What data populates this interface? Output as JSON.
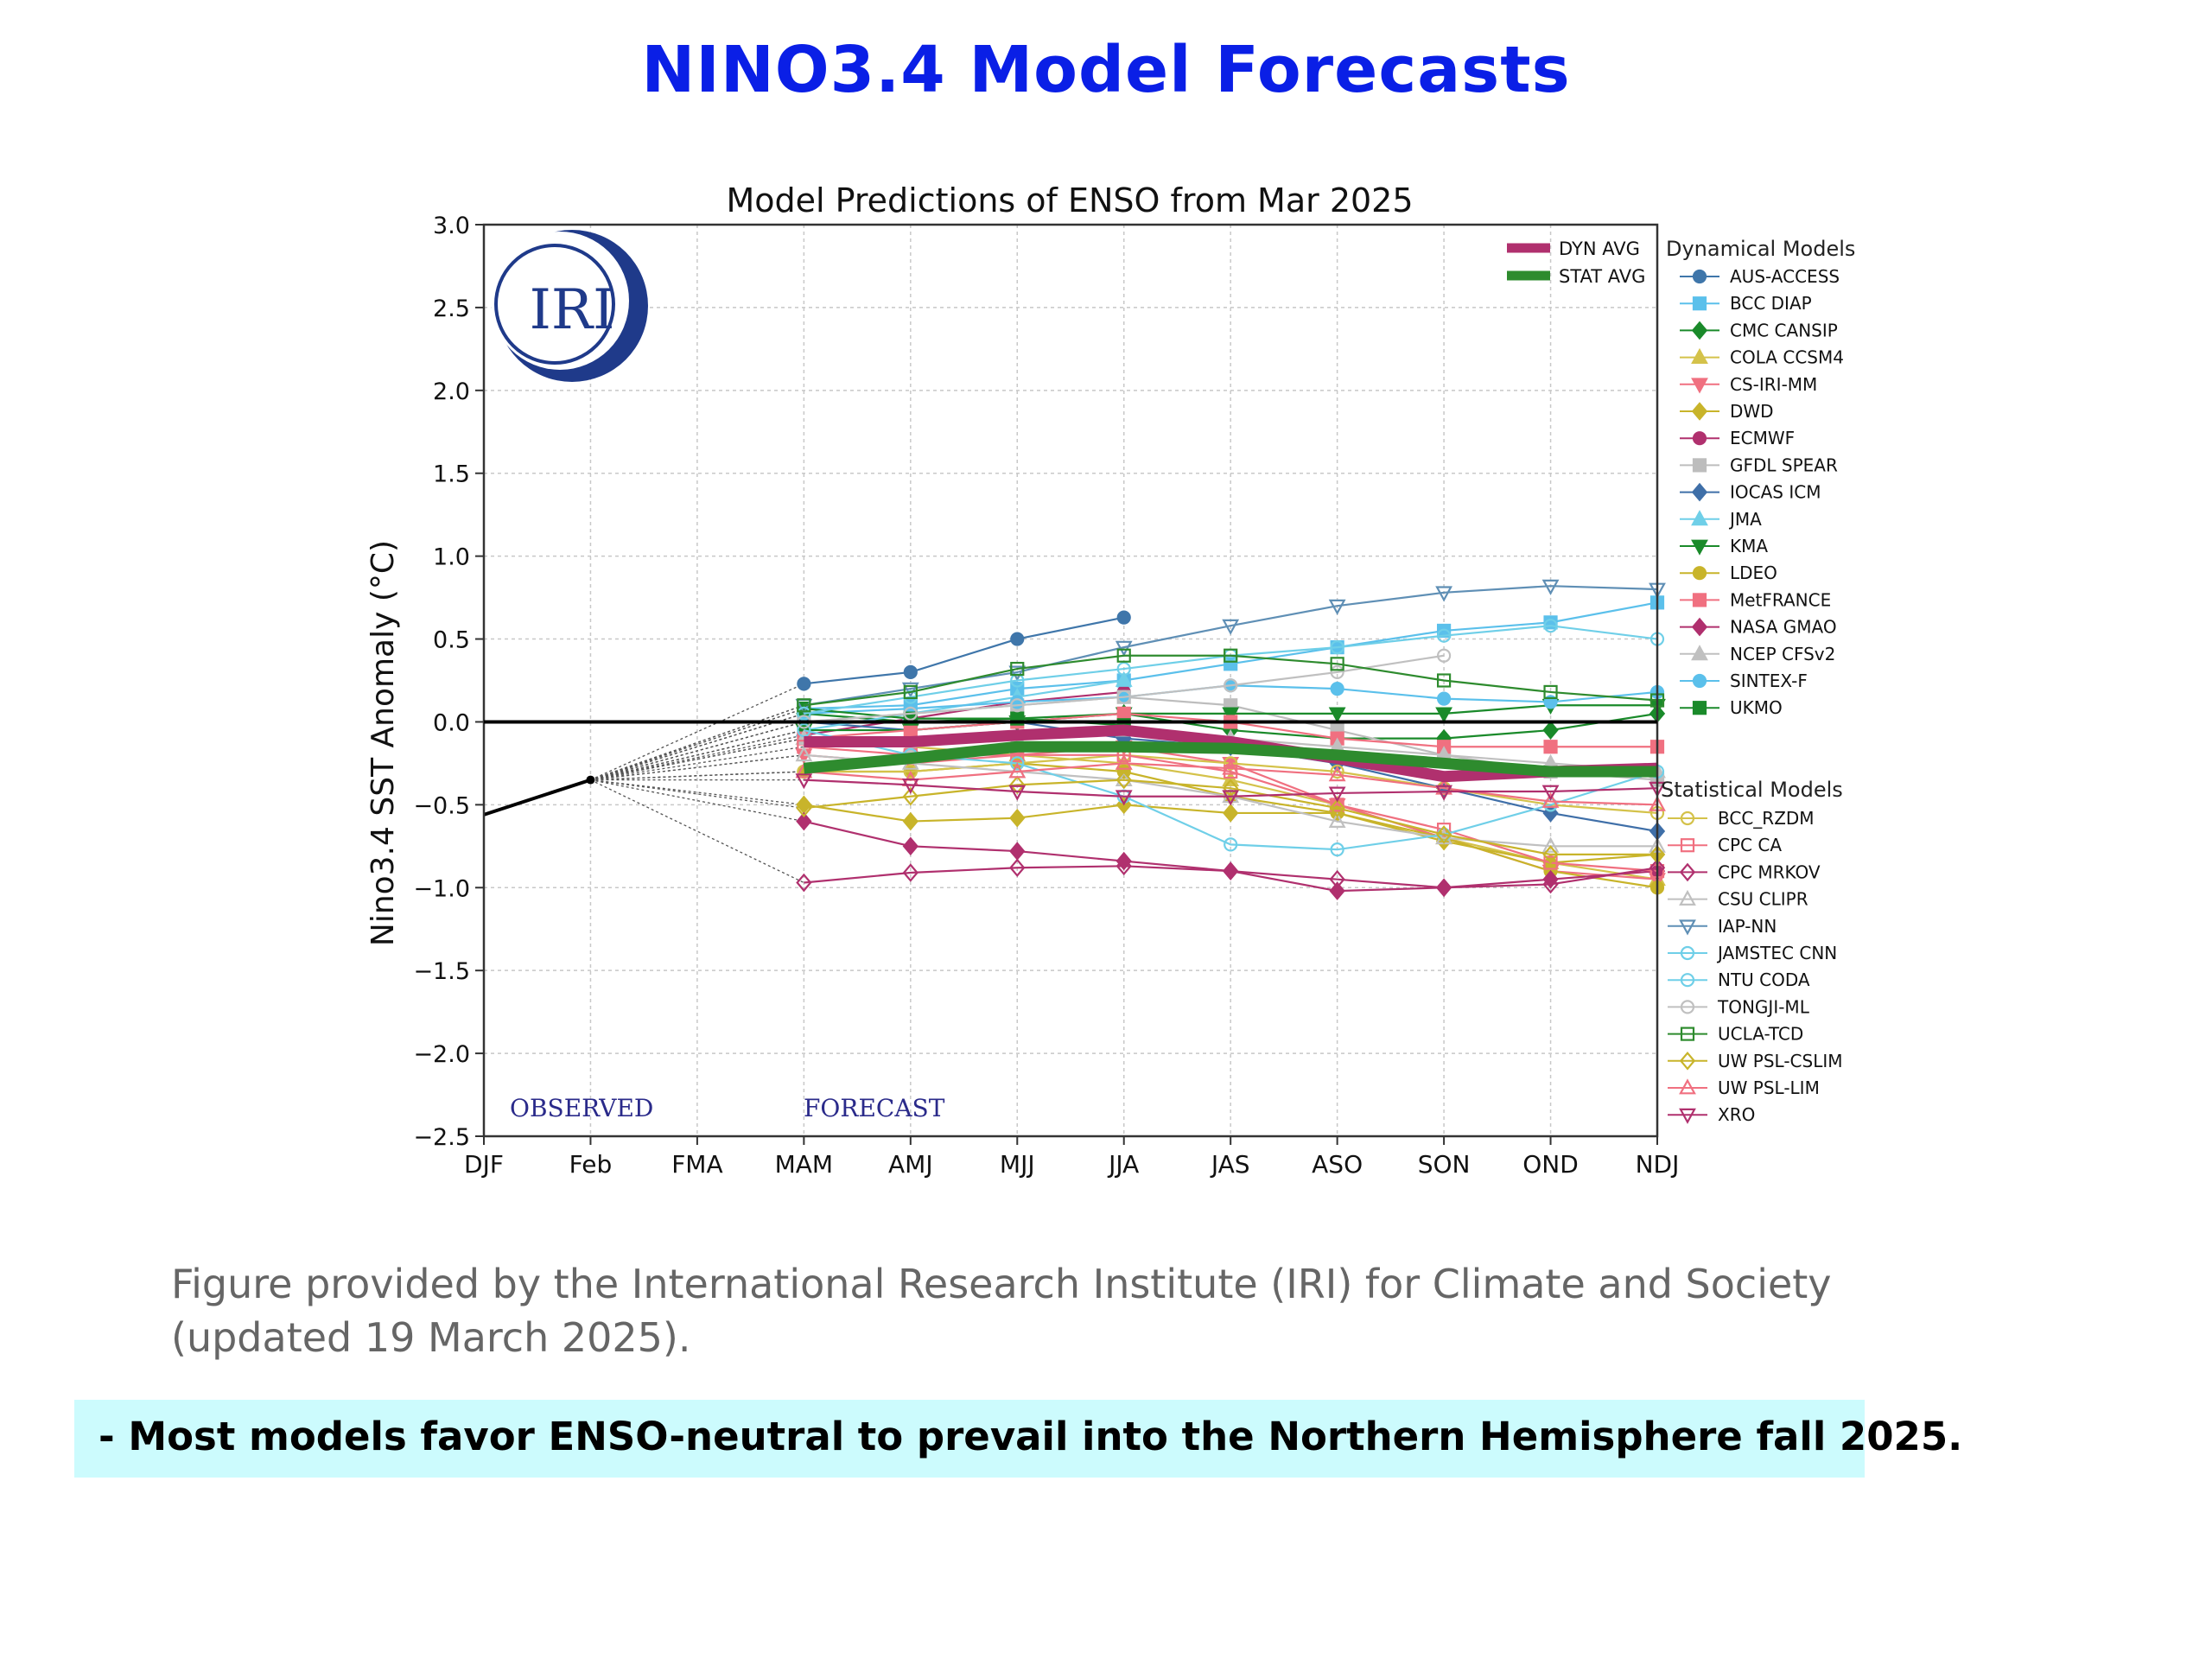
{
  "page": {
    "title": "NINO3.4 Model Forecasts",
    "caption": "Figure provided by the International Research Institute (IRI) for Climate and Society (updated 19 March 2025).",
    "callout": "-  Most models favor ENSO-neutral to prevail into the Northern Hemisphere fall 2025."
  },
  "chart_data": {
    "type": "line",
    "title": "Model Predictions of ENSO from Mar 2025",
    "ylabel": "Nino3.4 SST Anomaly (°C)",
    "xlabel": "",
    "categories": [
      "DJF",
      "Feb",
      "FMA",
      "MAM",
      "AMJ",
      "MJJ",
      "JJA",
      "JAS",
      "ASO",
      "SON",
      "OND",
      "NDJ"
    ],
    "ylim": [
      -2.5,
      3.0
    ],
    "yticks": [
      -2.5,
      -2.0,
      -1.5,
      -1.0,
      -0.5,
      0.0,
      0.5,
      1.0,
      1.5,
      2.0,
      2.5,
      3.0
    ],
    "ytick_labels": [
      "−2.5",
      "−2.0",
      "−1.5",
      "−1.0",
      "−0.5",
      "0.0",
      "0.5",
      "1.0",
      "1.5",
      "2.0",
      "2.5",
      "3.0"
    ],
    "grid": true,
    "zero_line": true,
    "logo_text": "IRI",
    "observed_label": "OBSERVED",
    "forecast_label": "FORECAST",
    "observed": {
      "x": [
        "DJF",
        "Feb"
      ],
      "values": [
        -0.56,
        -0.35
      ]
    },
    "averages": [
      {
        "name": "DYN AVG",
        "color": "#b0306e",
        "values": [
          -0.12,
          -0.12,
          -0.08,
          -0.05,
          -0.12,
          -0.22,
          -0.33,
          -0.3,
          -0.28
        ]
      },
      {
        "name": "STAT AVG",
        "color": "#2e8b2e",
        "values": [
          -0.28,
          -0.22,
          -0.15,
          -0.15,
          -0.16,
          -0.2,
          -0.25,
          -0.3,
          -0.3
        ]
      }
    ],
    "dynamical_title": "Dynamical Models",
    "dynamical_models": [
      {
        "name": "AUS-ACCESS",
        "color": "#3f76aa",
        "marker": "circle",
        "filled": true,
        "values": [
          0.23,
          0.3,
          0.5,
          0.63
        ]
      },
      {
        "name": "BCC DIAP",
        "color": "#5bc0eb",
        "marker": "square",
        "filled": true,
        "values": [
          0.08,
          0.1,
          0.2,
          0.25,
          0.35,
          0.45,
          0.55,
          0.6,
          0.72
        ]
      },
      {
        "name": "CMC CANSIP",
        "color": "#1a8a2a",
        "marker": "diamond",
        "filled": true,
        "values": [
          0.05,
          0.0,
          0.02,
          0.05,
          -0.05,
          -0.1,
          -0.1,
          -0.05,
          0.05
        ]
      },
      {
        "name": "COLA CCSM4",
        "color": "#d4c24a",
        "marker": "triangle",
        "filled": true,
        "values": [
          -0.1,
          -0.15,
          -0.2,
          -0.25,
          -0.35,
          -0.5,
          -0.7,
          -0.85,
          -0.95
        ]
      },
      {
        "name": "CS-IRI-MM",
        "color": "#f07080",
        "marker": "triangle-down",
        "filled": true,
        "values": [
          -0.2,
          -0.25,
          -0.2,
          -0.15,
          -0.25,
          -0.5,
          -0.7,
          -0.9,
          -0.95
        ]
      },
      {
        "name": "DWD",
        "color": "#c8b42a",
        "marker": "diamond",
        "filled": true,
        "values": [
          -0.5,
          -0.6,
          -0.58,
          -0.5,
          -0.55,
          -0.55,
          -0.72,
          -0.85,
          -0.8
        ]
      },
      {
        "name": "ECMWF",
        "color": "#b0306e",
        "marker": "circle",
        "filled": true,
        "values": [
          -0.08,
          0.02,
          0.12,
          0.18
        ]
      },
      {
        "name": "GFDL SPEAR",
        "color": "#bdbdbd",
        "marker": "square",
        "filled": true,
        "values": [
          0.0,
          0.05,
          0.1,
          0.15,
          0.1,
          -0.05,
          -0.2,
          -0.3,
          -0.35
        ]
      },
      {
        "name": "IOCAS ICM",
        "color": "#3f6fa8",
        "marker": "diamond",
        "filled": true,
        "values": [
          0.0,
          -0.05,
          0.0,
          -0.1,
          -0.15,
          -0.25,
          -0.4,
          -0.55,
          -0.66
        ]
      },
      {
        "name": "JMA",
        "color": "#6fcfe8",
        "marker": "triangle",
        "filled": true,
        "values": [
          -0.05,
          0.05,
          0.15,
          0.25
        ]
      },
      {
        "name": "KMA",
        "color": "#1a8a2a",
        "marker": "triangle-down",
        "filled": true,
        "values": [
          -0.05,
          -0.05,
          0.0,
          0.05,
          0.05,
          0.05,
          0.05,
          0.1,
          0.1
        ]
      },
      {
        "name": "LDEO",
        "color": "#c8b42a",
        "marker": "circle",
        "filled": true,
        "values": [
          -0.3,
          -0.3,
          -0.25,
          -0.3,
          -0.45,
          -0.55,
          -0.7,
          -0.9,
          -1.0
        ]
      },
      {
        "name": "MetFRANCE",
        "color": "#f07080",
        "marker": "square",
        "filled": true,
        "values": [
          -0.1,
          -0.05,
          0.0,
          0.05,
          0.0,
          -0.1,
          -0.15,
          -0.15,
          -0.15
        ]
      },
      {
        "name": "NASA GMAO",
        "color": "#b0306e",
        "marker": "diamond",
        "filled": true,
        "values": [
          -0.6,
          -0.75,
          -0.78,
          -0.84,
          -0.9,
          -1.02,
          -1.0,
          -0.95,
          -0.9
        ]
      },
      {
        "name": "NCEP CFSv2",
        "color": "#c0c0c0",
        "marker": "triangle",
        "filled": true,
        "values": [
          -0.1,
          -0.15,
          -0.1,
          -0.05,
          -0.1,
          -0.15,
          -0.2,
          -0.25,
          -0.3
        ]
      },
      {
        "name": "SINTEX-F",
        "color": "#5bc0eb",
        "marker": "circle",
        "filled": true,
        "values": [
          0.05,
          0.08,
          0.12,
          0.15,
          0.22,
          0.2,
          0.14,
          0.12,
          0.18
        ]
      },
      {
        "name": "UKMO",
        "color": "#1a8a2a",
        "marker": "square",
        "filled": true,
        "values": [
          0.08,
          0.02,
          0.02,
          -0.02
        ]
      }
    ],
    "statistical_title": "Statistical Models",
    "statistical_models": [
      {
        "name": "BCC_RZDM",
        "color": "#d4c24a",
        "marker": "circle",
        "filled": false,
        "values": [
          -0.3,
          -0.3,
          -0.25,
          -0.2,
          -0.25,
          -0.3,
          -0.4,
          -0.5,
          -0.55
        ]
      },
      {
        "name": "CPC CA",
        "color": "#f07080",
        "marker": "square",
        "filled": false,
        "values": [
          -0.15,
          -0.2,
          -0.2,
          -0.2,
          -0.3,
          -0.5,
          -0.65,
          -0.85,
          -0.9
        ]
      },
      {
        "name": "CPC MRKOV",
        "color": "#b0306e",
        "marker": "diamond",
        "filled": false,
        "values": [
          -0.97,
          -0.91,
          -0.88,
          -0.87,
          -0.9,
          -0.95,
          -1.0,
          -0.98,
          -0.88
        ]
      },
      {
        "name": "CSU CLIPR",
        "color": "#c0c0c0",
        "marker": "triangle",
        "filled": false,
        "values": [
          -0.2,
          -0.25,
          -0.3,
          -0.35,
          -0.45,
          -0.6,
          -0.7,
          -0.75,
          -0.75
        ]
      },
      {
        "name": "IAP-NN",
        "color": "#5f8fb5",
        "marker": "triangle-down",
        "filled": false,
        "values": [
          0.1,
          0.2,
          0.3,
          0.45,
          0.58,
          0.7,
          0.78,
          0.82,
          0.8
        ]
      },
      {
        "name": "JAMSTEC CNN",
        "color": "#6fcfe8",
        "marker": "circle",
        "filled": false,
        "values": [
          -0.05,
          -0.2,
          -0.25,
          -0.45,
          -0.74,
          -0.77,
          -0.68,
          -0.5,
          -0.3
        ]
      },
      {
        "name": "NTU CODA",
        "color": "#6fcfe8",
        "marker": "circle",
        "filled": false,
        "values": [
          0.05,
          0.15,
          0.25,
          0.32,
          0.4,
          0.45,
          0.52,
          0.58,
          0.5
        ]
      },
      {
        "name": "TONGJI-ML",
        "color": "#c0c0c0",
        "marker": "circle",
        "filled": false,
        "values": [
          0.0,
          0.05,
          0.1,
          0.15,
          0.22,
          0.3,
          0.4
        ]
      },
      {
        "name": "UCLA-TCD",
        "color": "#2e8b2e",
        "marker": "square",
        "filled": false,
        "values": [
          0.1,
          0.18,
          0.32,
          0.4,
          0.4,
          0.35,
          0.25,
          0.18,
          0.13
        ]
      },
      {
        "name": "UW PSL-CSLIM",
        "color": "#c8b42a",
        "marker": "diamond",
        "filled": false,
        "values": [
          -0.52,
          -0.45,
          -0.38,
          -0.35,
          -0.4,
          -0.52,
          -0.68,
          -0.8,
          -0.8
        ]
      },
      {
        "name": "UW PSL-LIM",
        "color": "#f07080",
        "marker": "triangle",
        "filled": false,
        "values": [
          -0.3,
          -0.35,
          -0.3,
          -0.25,
          -0.28,
          -0.32,
          -0.4,
          -0.48,
          -0.5
        ]
      },
      {
        "name": "XRO",
        "color": "#b0306e",
        "marker": "triangle-down",
        "filled": false,
        "values": [
          -0.35,
          -0.38,
          -0.42,
          -0.45,
          -0.45,
          -0.43,
          -0.42,
          -0.42,
          -0.4
        ]
      }
    ]
  }
}
